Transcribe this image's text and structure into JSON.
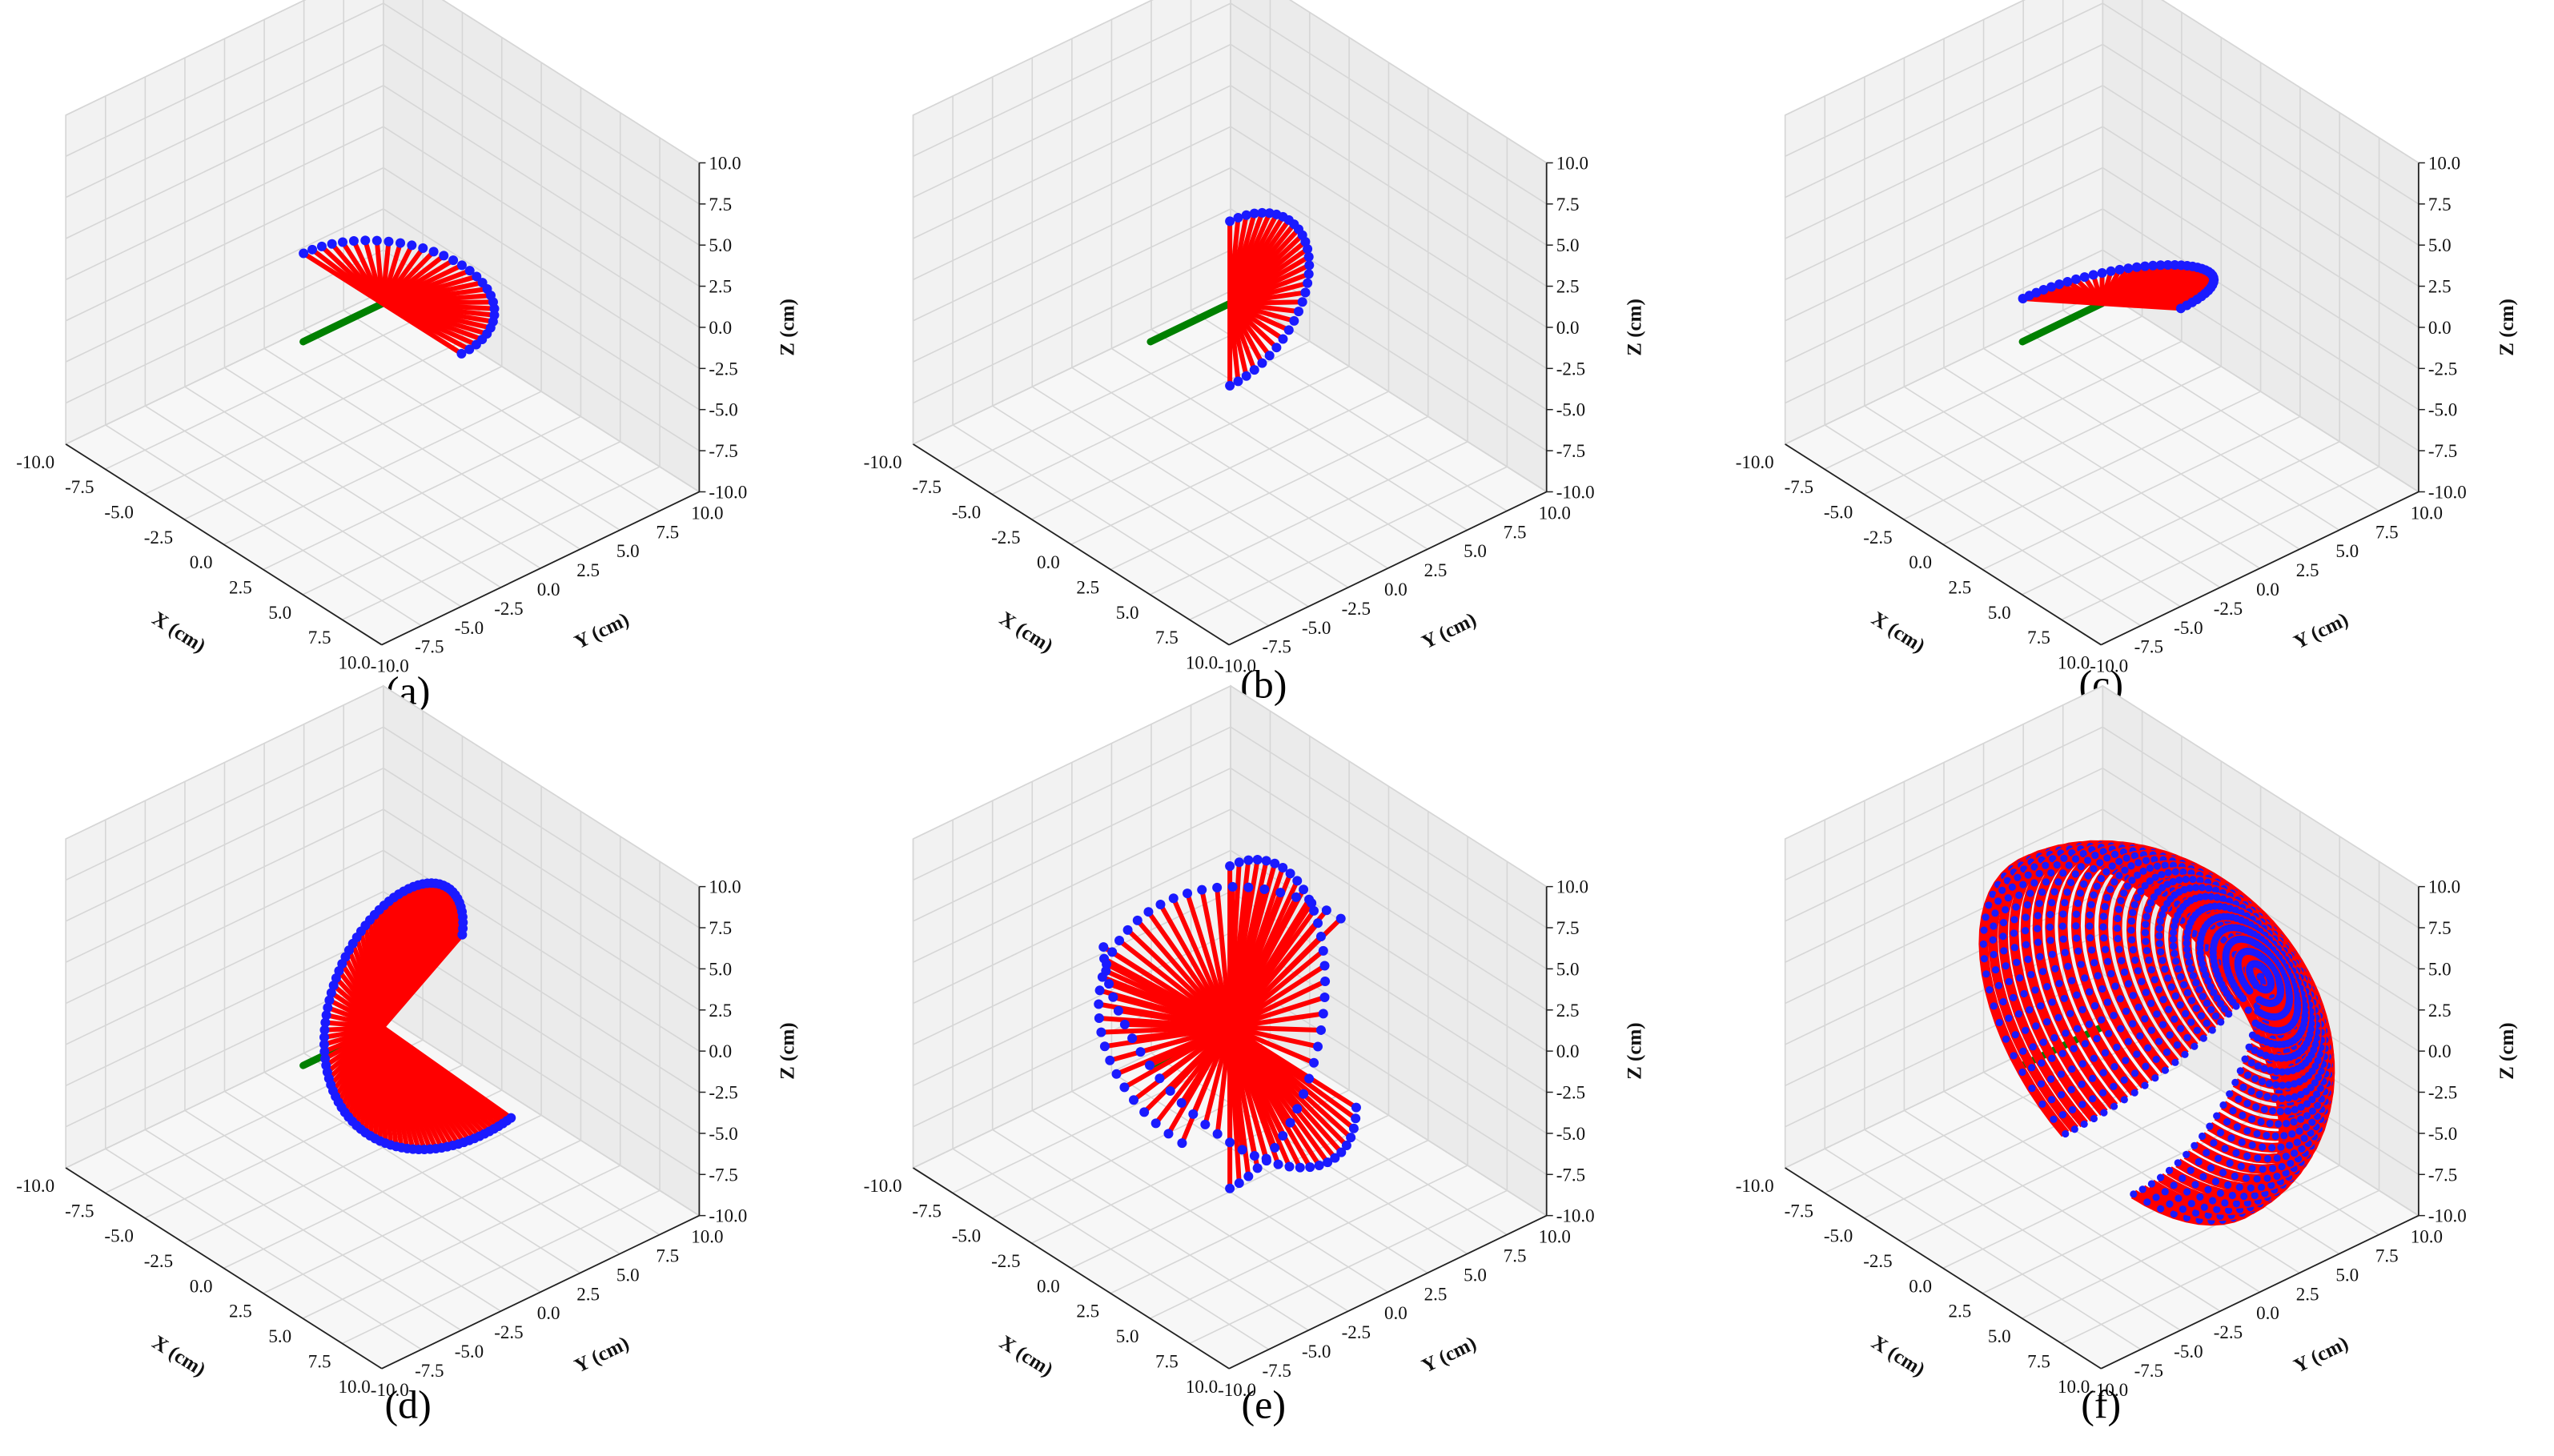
{
  "chart_data": [
    {
      "type": "scatter",
      "subplot_label": "(a)",
      "xlabel": "X (cm)",
      "ylabel": "Y (cm)",
      "zlabel": "Z (cm)",
      "xlim": [
        -10,
        10
      ],
      "ylim": [
        -10,
        10
      ],
      "zlim": [
        -10,
        10
      ],
      "ticks": [
        "-10.0",
        "-7.5",
        "-5.0",
        "-2.5",
        "0.0",
        "2.5",
        "5.0",
        "7.5",
        "10.0"
      ],
      "grid": true,
      "sweep": {
        "theta_deg": [
          -90,
          90
        ],
        "phi_deg": [
          0,
          0
        ],
        "radius_cm": 5
      },
      "series": [
        {
          "marker": "line",
          "color": "#008000",
          "points": [
            [
              0,
              -5,
              0
            ],
            [
              0,
              0,
              0
            ]
          ]
        },
        {
          "marker": "rays",
          "color": "#ff0000"
        },
        {
          "marker": "points",
          "color": "#1a1aff"
        }
      ]
    },
    {
      "type": "scatter",
      "subplot_label": "(b)",
      "xlabel": "X (cm)",
      "ylabel": "Y (cm)",
      "zlabel": "Z (cm)",
      "xlim": [
        -10,
        10
      ],
      "ylim": [
        -10,
        10
      ],
      "zlim": [
        -10,
        10
      ],
      "ticks": [
        "-10.0",
        "-7.5",
        "-5.0",
        "-2.5",
        "0.0",
        "2.5",
        "5.0",
        "7.5",
        "10.0"
      ],
      "grid": true,
      "sweep": {
        "theta_deg": [
          0,
          0
        ],
        "phi_deg": [
          -90,
          90
        ],
        "radius_cm": 5
      },
      "series": [
        {
          "marker": "line",
          "color": "#008000",
          "points": [
            [
              0,
              -5,
              0
            ],
            [
              0,
              0,
              0
            ]
          ]
        },
        {
          "marker": "rays",
          "color": "#ff0000"
        },
        {
          "marker": "points",
          "color": "#1a1aff"
        }
      ]
    },
    {
      "type": "scatter",
      "subplot_label": "(c)",
      "xlabel": "X (cm)",
      "ylabel": "Y (cm)",
      "zlabel": "Z (cm)",
      "xlim": [
        -10,
        10
      ],
      "ylim": [
        -10,
        10
      ],
      "zlim": [
        -10,
        10
      ],
      "ticks": [
        "-10.0",
        "-7.5",
        "-5.0",
        "-2.5",
        "0.0",
        "2.5",
        "5.0",
        "7.5",
        "10.0"
      ],
      "grid": true,
      "sweep": {
        "theta_deg": [
          -90,
          90
        ],
        "phi_deg": [
          -90,
          90
        ],
        "radius_cm": 5,
        "mode": "diagonal"
      },
      "series": [
        {
          "marker": "line",
          "color": "#008000",
          "points": [
            [
              0,
              -5,
              0
            ],
            [
              0,
              0,
              0
            ]
          ]
        },
        {
          "marker": "rays",
          "color": "#ff0000"
        },
        {
          "marker": "points",
          "color": "#1a1aff"
        }
      ]
    },
    {
      "type": "scatter",
      "subplot_label": "(d)",
      "xlabel": "X (cm)",
      "ylabel": "Y (cm)",
      "zlabel": "Z (cm)",
      "xlim": [
        -10,
        10
      ],
      "ylim": [
        -10,
        10
      ],
      "zlim": [
        -10,
        10
      ],
      "ticks": [
        "-10.0",
        "-7.5",
        "-5.0",
        "-2.5",
        "0.0",
        "2.5",
        "5.0",
        "7.5",
        "10.0"
      ],
      "grid": true,
      "sweep": {
        "mode": "spiral",
        "radius_cm": 8
      },
      "series": [
        {
          "marker": "line",
          "color": "#008000",
          "points": [
            [
              0,
              -5,
              0
            ],
            [
              0,
              0,
              0
            ]
          ]
        },
        {
          "marker": "rays",
          "color": "#ff0000"
        },
        {
          "marker": "points",
          "color": "#1a1aff"
        }
      ]
    },
    {
      "type": "scatter",
      "subplot_label": "(e)",
      "xlabel": "X (cm)",
      "ylabel": "Y (cm)",
      "zlabel": "Z (cm)",
      "xlim": [
        -10,
        10
      ],
      "ylim": [
        -10,
        10
      ],
      "zlim": [
        -10,
        10
      ],
      "ticks": [
        "-10.0",
        "-7.5",
        "-5.0",
        "-2.5",
        "0.0",
        "2.5",
        "5.0",
        "7.5",
        "10.0"
      ],
      "grid": true,
      "sweep": {
        "mode": "fans",
        "radius_cm": 10
      },
      "series": [
        {
          "marker": "line",
          "color": "#008000",
          "points": [
            [
              0,
              -5,
              0
            ],
            [
              0,
              0,
              0
            ]
          ]
        },
        {
          "marker": "rays",
          "color": "#ff0000"
        },
        {
          "marker": "points",
          "color": "#1a1aff"
        }
      ]
    },
    {
      "type": "scatter",
      "subplot_label": "(f)",
      "xlabel": "X (cm)",
      "ylabel": "Y (cm)",
      "zlabel": "Z (cm)",
      "xlim": [
        -10,
        10
      ],
      "ylim": [
        -10,
        10
      ],
      "zlim": [
        -10,
        10
      ],
      "ticks": [
        "-10.0",
        "-7.5",
        "-5.0",
        "-2.5",
        "0.0",
        "2.5",
        "5.0",
        "7.5",
        "10.0"
      ],
      "grid": true,
      "sweep": {
        "mode": "hemisphere",
        "radius_cm": 10
      },
      "series": [
        {
          "marker": "line",
          "color": "#008000",
          "points": [
            [
              0,
              -5,
              0
            ],
            [
              0,
              0,
              0
            ]
          ]
        },
        {
          "marker": "rays",
          "color": "#ff0000"
        },
        {
          "marker": "points",
          "color": "#1a1aff"
        }
      ]
    }
  ]
}
